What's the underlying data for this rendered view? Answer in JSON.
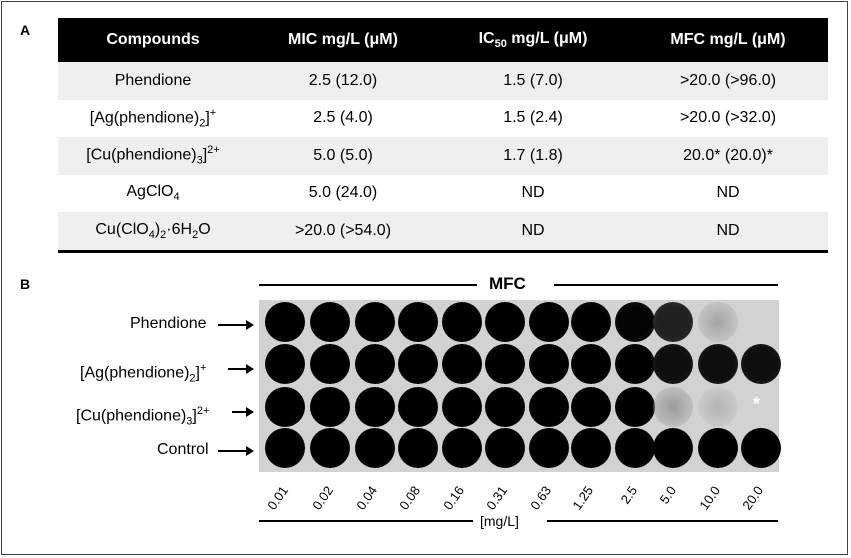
{
  "panel_a": {
    "letter": "A",
    "headers": [
      "Compounds",
      "MIC mg/L (μM)",
      "IC",
      "50",
      " mg/L (μM)",
      "MFC mg/L (μM)"
    ],
    "rows": [
      {
        "compound": [
          "Phendione"
        ],
        "mic": "2.5 (12.0)",
        "ic50": "1.5 (7.0)",
        "mfc": ">20.0 (>96.0)"
      },
      {
        "compound": [
          "[Ag(phendione)",
          "2",
          "]",
          "+"
        ],
        "mic": "2.5 (4.0)",
        "ic50": "1.5 (2.4)",
        "mfc": ">20.0 (>32.0)"
      },
      {
        "compound": [
          "[Cu(phendione)",
          "3",
          "]",
          "2+"
        ],
        "mic": "5.0 (5.0)",
        "ic50": "1.7 (1.8)",
        "mfc": "20.0* (20.0)*"
      },
      {
        "compound": [
          "AgClO",
          "4"
        ],
        "mic": "5.0 (24.0)",
        "ic50": "ND",
        "mfc": "ND"
      },
      {
        "compound": [
          "Cu(ClO",
          "4",
          ")",
          "2",
          "·6H",
          "2",
          "O"
        ],
        "mic": ">20.0 (>54.0)",
        "ic50": "ND",
        "mfc": "ND"
      }
    ]
  },
  "panel_b": {
    "letter": "B",
    "top_label": "MFC",
    "unit_label": "[mg/L]",
    "row_labels": [
      [
        "Phendione"
      ],
      [
        "[Ag(phendione)",
        "2",
        "]",
        "+"
      ],
      [
        "[Cu(phendione)",
        "3",
        "]",
        "2+"
      ],
      [
        "Control"
      ]
    ],
    "concentrations": [
      "0.01",
      "0.02",
      "0.04",
      "0.08",
      "0.16",
      "0.31",
      "0.63",
      "1.25",
      "2.5",
      "5.0",
      "10.0",
      "20.0"
    ],
    "growth_levels": [
      [
        1,
        1,
        1,
        1,
        1,
        1,
        1,
        0.92,
        0.9,
        0.75,
        0.3,
        0
      ],
      [
        1,
        1,
        1,
        1,
        1,
        1,
        1,
        1,
        0.95,
        0.85,
        0.85,
        0.85
      ],
      [
        1,
        1,
        1,
        1,
        1,
        1,
        1,
        1,
        0.95,
        0.4,
        0.15,
        0
      ],
      [
        1,
        1,
        1,
        1,
        1,
        1,
        1,
        1,
        1,
        1,
        1,
        1
      ]
    ],
    "star_mark": "*"
  }
}
